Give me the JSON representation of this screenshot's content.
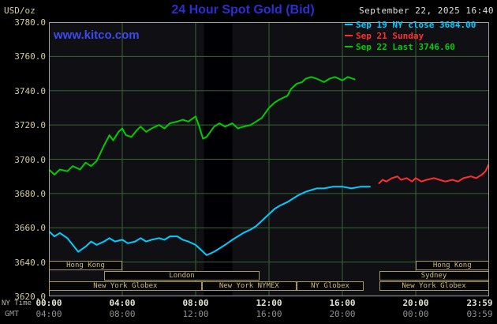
{
  "header": {
    "title": "24 Hour Spot Gold (Bid)",
    "datetime": "September 22, 2025 16:40",
    "units_label": "USD/oz",
    "site_link": "www.kitco.com"
  },
  "legend": [
    {
      "label": "Sep 19 NY close 3684.00",
      "color": "#00ccff"
    },
    {
      "label": "Sep 21 Sunday",
      "color": "#ff2e2e"
    },
    {
      "label": "Sep 22 Last 3746.60",
      "color": "#00cc00"
    }
  ],
  "axes": {
    "x_ny_label": "NY Time",
    "x_gmt_label": "GMT",
    "y_ticks": [
      "3780.0",
      "3760.0",
      "3740.0",
      "3720.0",
      "3700.0",
      "3680.0",
      "3660.0",
      "3640.0",
      "3620.0"
    ],
    "x_ny_ticks": [
      "00:00",
      "04:00",
      "08:00",
      "12:00",
      "16:00",
      "20:00",
      "23:59"
    ],
    "x_gmt_ticks": [
      "04:00",
      "08:00",
      "12:00",
      "16:00",
      "20:00",
      "00:00",
      "03:59"
    ]
  },
  "sessions": [
    {
      "row": 0,
      "start_h": 0,
      "end_h": 4,
      "label": "Hong Kong"
    },
    {
      "row": 0,
      "start_h": 20,
      "end_h": 23.98,
      "label": "Hong Kong"
    },
    {
      "row": 1,
      "start_h": 3,
      "end_h": 11.5,
      "label": "London"
    },
    {
      "row": 1,
      "start_h": 18,
      "end_h": 23.98,
      "label": "Sydney"
    },
    {
      "row": 2,
      "start_h": 0,
      "end_h": 8.33,
      "label": "New York Globex"
    },
    {
      "row": 2,
      "start_h": 8.33,
      "end_h": 13.5,
      "label": "New York NYMEX"
    },
    {
      "row": 2,
      "start_h": 13.5,
      "end_h": 17.17,
      "label": "NY Globex"
    },
    {
      "row": 2,
      "start_h": 18,
      "end_h": 23.98,
      "label": "New York Globex"
    }
  ],
  "colors": {
    "background": "#000000",
    "plot_bg": "#101014",
    "band": "#000004",
    "grid": "#336633",
    "plot_border": "#a0a0a0",
    "title_blue": "#2d2dd4",
    "kitco_blue": "#3a4af0",
    "axis_tan": "#d4cb9e",
    "cyan": "#00ccff",
    "red": "#ff2e2e",
    "green": "#00cc00"
  },
  "chart_data": {
    "type": "line",
    "title": "24 Hour Spot Gold (Bid)",
    "ylabel": "USD/oz",
    "xlabel": "NY Time (hours)",
    "ylim": [
      3620,
      3780
    ],
    "xlim_hours": [
      0,
      24
    ],
    "y_grid_step": 20,
    "x_grid_step_hours": 4,
    "band_hours": [
      8.45,
      10.0
    ],
    "grid": true,
    "legend_position": "top-right",
    "series": [
      {
        "name": "Sep 19 NY close 3684.00",
        "color": "#00ccff",
        "points": [
          [
            0,
            3658
          ],
          [
            0.3,
            3655
          ],
          [
            0.6,
            3657
          ],
          [
            1,
            3654
          ],
          [
            1.3,
            3650
          ],
          [
            1.6,
            3646
          ],
          [
            2,
            3649
          ],
          [
            2.3,
            3652
          ],
          [
            2.6,
            3650
          ],
          [
            3,
            3652
          ],
          [
            3.3,
            3654
          ],
          [
            3.6,
            3652
          ],
          [
            4,
            3653
          ],
          [
            4.3,
            3651
          ],
          [
            4.7,
            3652
          ],
          [
            5,
            3654
          ],
          [
            5.3,
            3652
          ],
          [
            5.6,
            3653
          ],
          [
            6,
            3654
          ],
          [
            6.3,
            3653
          ],
          [
            6.6,
            3655
          ],
          [
            7,
            3655
          ],
          [
            7.3,
            3653
          ],
          [
            7.6,
            3652
          ],
          [
            8,
            3650
          ],
          [
            8.3,
            3647
          ],
          [
            8.6,
            3644
          ],
          [
            9,
            3646
          ],
          [
            9.3,
            3648
          ],
          [
            9.6,
            3650
          ],
          [
            10,
            3653
          ],
          [
            10.3,
            3655
          ],
          [
            10.6,
            3657
          ],
          [
            11,
            3659
          ],
          [
            11.3,
            3661
          ],
          [
            11.6,
            3664
          ],
          [
            12,
            3668
          ],
          [
            12.3,
            3671
          ],
          [
            12.6,
            3673
          ],
          [
            13,
            3675
          ],
          [
            13.3,
            3677
          ],
          [
            13.6,
            3679
          ],
          [
            14,
            3681
          ],
          [
            14.3,
            3682
          ],
          [
            14.6,
            3683
          ],
          [
            15,
            3683
          ],
          [
            15.5,
            3684
          ],
          [
            16,
            3684
          ],
          [
            16.5,
            3683
          ],
          [
            17,
            3684
          ],
          [
            17.5,
            3684
          ]
        ]
      },
      {
        "name": "Sep 21 Sunday",
        "color": "#ff2e2e",
        "points": [
          [
            18,
            3686
          ],
          [
            18.2,
            3688
          ],
          [
            18.4,
            3687
          ],
          [
            18.7,
            3689
          ],
          [
            19,
            3690
          ],
          [
            19.2,
            3688
          ],
          [
            19.5,
            3689
          ],
          [
            19.8,
            3687
          ],
          [
            20,
            3689
          ],
          [
            20.3,
            3687
          ],
          [
            20.6,
            3688
          ],
          [
            21,
            3689
          ],
          [
            21.3,
            3688
          ],
          [
            21.6,
            3687
          ],
          [
            22,
            3688
          ],
          [
            22.3,
            3687
          ],
          [
            22.6,
            3689
          ],
          [
            23,
            3690
          ],
          [
            23.3,
            3689
          ],
          [
            23.6,
            3691
          ],
          [
            23.8,
            3693
          ],
          [
            23.98,
            3697
          ]
        ]
      },
      {
        "name": "Sep 22 Last 3746.60",
        "color": "#00cc00",
        "points": [
          [
            0,
            3694
          ],
          [
            0.3,
            3691
          ],
          [
            0.6,
            3694
          ],
          [
            1,
            3693
          ],
          [
            1.3,
            3696
          ],
          [
            1.7,
            3694
          ],
          [
            2,
            3698
          ],
          [
            2.3,
            3696
          ],
          [
            2.6,
            3699
          ],
          [
            3,
            3708
          ],
          [
            3.3,
            3714
          ],
          [
            3.5,
            3711
          ],
          [
            3.8,
            3716
          ],
          [
            4,
            3718
          ],
          [
            4.2,
            3714
          ],
          [
            4.5,
            3713
          ],
          [
            4.8,
            3717
          ],
          [
            5,
            3719
          ],
          [
            5.3,
            3716
          ],
          [
            5.6,
            3718
          ],
          [
            6,
            3720
          ],
          [
            6.3,
            3718
          ],
          [
            6.6,
            3721
          ],
          [
            7,
            3722
          ],
          [
            7.3,
            3723
          ],
          [
            7.6,
            3722
          ],
          [
            8,
            3725
          ],
          [
            8.2,
            3719
          ],
          [
            8.4,
            3712
          ],
          [
            8.6,
            3713
          ],
          [
            8.8,
            3716
          ],
          [
            9,
            3719
          ],
          [
            9.3,
            3721
          ],
          [
            9.6,
            3719
          ],
          [
            10,
            3721
          ],
          [
            10.3,
            3718
          ],
          [
            10.6,
            3719
          ],
          [
            11,
            3720
          ],
          [
            11.3,
            3722
          ],
          [
            11.6,
            3724
          ],
          [
            12,
            3730
          ],
          [
            12.3,
            3733
          ],
          [
            12.6,
            3735
          ],
          [
            13,
            3737
          ],
          [
            13.2,
            3741
          ],
          [
            13.5,
            3744
          ],
          [
            13.8,
            3745
          ],
          [
            14,
            3747
          ],
          [
            14.3,
            3748
          ],
          [
            14.6,
            3747
          ],
          [
            15,
            3745
          ],
          [
            15.3,
            3747
          ],
          [
            15.6,
            3748
          ],
          [
            16,
            3746
          ],
          [
            16.3,
            3748
          ],
          [
            16.67,
            3746.6
          ]
        ]
      }
    ]
  }
}
